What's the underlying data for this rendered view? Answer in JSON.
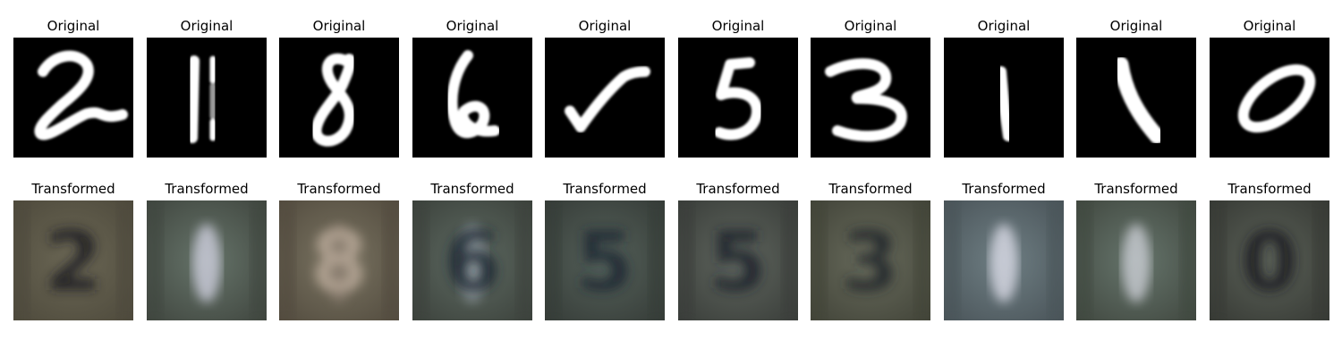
{
  "rows": [
    {
      "kind": "original",
      "panels": [
        {
          "title": "Original",
          "digit": "2"
        },
        {
          "title": "Original",
          "digit": "1"
        },
        {
          "title": "Original",
          "digit": "8"
        },
        {
          "title": "Original",
          "digit": "6"
        },
        {
          "title": "Original",
          "digit": "check"
        },
        {
          "title": "Original",
          "digit": "5"
        },
        {
          "title": "Original",
          "digit": "3"
        },
        {
          "title": "Original",
          "digit": "1"
        },
        {
          "title": "Original",
          "digit": "1"
        },
        {
          "title": "Original",
          "digit": "0"
        }
      ]
    },
    {
      "kind": "transformed",
      "panels": [
        {
          "title": "Transformed",
          "digit": "2"
        },
        {
          "title": "Transformed",
          "digit": "0"
        },
        {
          "title": "Transformed",
          "digit": "8"
        },
        {
          "title": "Transformed",
          "digit": "6"
        },
        {
          "title": "Transformed",
          "digit": "5"
        },
        {
          "title": "Transformed",
          "digit": "5"
        },
        {
          "title": "Transformed",
          "digit": "3"
        },
        {
          "title": "Transformed",
          "digit": "1"
        },
        {
          "title": "Transformed",
          "digit": "0"
        },
        {
          "title": "Transformed",
          "digit": "0"
        }
      ]
    }
  ]
}
